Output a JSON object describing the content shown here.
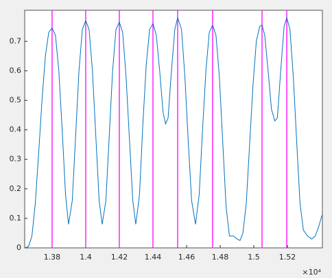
{
  "chart_data": {
    "type": "line",
    "x": [
      13640,
      13660,
      13680,
      13700,
      13720,
      13740,
      13760,
      13780,
      13800,
      13820,
      13840,
      13860,
      13880,
      13898,
      13920,
      13940,
      13960,
      13980,
      14000,
      14020,
      14040,
      14060,
      14080,
      14098,
      14120,
      14140,
      14160,
      14180,
      14200,
      14220,
      14240,
      14260,
      14280,
      14298,
      14320,
      14340,
      14360,
      14380,
      14400,
      14420,
      14440,
      14460,
      14475,
      14490,
      14510,
      14530,
      14547,
      14570,
      14590,
      14610,
      14630,
      14653,
      14675,
      14695,
      14715,
      14735,
      14755,
      14775,
      14795,
      14815,
      14835,
      14855,
      14880,
      14900,
      14918,
      14935,
      14955,
      14975,
      14995,
      15015,
      15035,
      15049,
      15065,
      15085,
      15105,
      15125,
      15140,
      15160,
      15180,
      15196,
      15215,
      15235,
      15255,
      15275,
      15295,
      15320,
      15345,
      15365,
      15385,
      15405
    ],
    "series": [
      {
        "color": "#0072bd",
        "values": [
          0.0,
          0.005,
          0.04,
          0.15,
          0.32,
          0.5,
          0.65,
          0.73,
          0.745,
          0.72,
          0.6,
          0.4,
          0.18,
          0.08,
          0.16,
          0.38,
          0.6,
          0.74,
          0.77,
          0.74,
          0.6,
          0.38,
          0.16,
          0.08,
          0.16,
          0.38,
          0.6,
          0.74,
          0.765,
          0.73,
          0.58,
          0.37,
          0.16,
          0.08,
          0.18,
          0.42,
          0.62,
          0.74,
          0.76,
          0.72,
          0.6,
          0.46,
          0.42,
          0.44,
          0.6,
          0.74,
          0.78,
          0.74,
          0.58,
          0.36,
          0.16,
          0.08,
          0.18,
          0.4,
          0.6,
          0.73,
          0.755,
          0.72,
          0.58,
          0.36,
          0.14,
          0.04,
          0.04,
          0.03,
          0.025,
          0.05,
          0.15,
          0.35,
          0.55,
          0.7,
          0.75,
          0.755,
          0.72,
          0.6,
          0.47,
          0.43,
          0.44,
          0.6,
          0.75,
          0.78,
          0.74,
          0.58,
          0.36,
          0.15,
          0.06,
          0.04,
          0.03,
          0.04,
          0.07,
          0.11
        ]
      }
    ],
    "vlines": {
      "color": "#ff00ff",
      "x": [
        13800,
        14000,
        14200,
        14400,
        14547,
        14755,
        15049,
        15196
      ]
    },
    "xlim": [
      13637,
      15408
    ],
    "ylim": [
      0,
      0.805
    ],
    "xticks": [
      {
        "value": 13800,
        "label": "1.38"
      },
      {
        "value": 14000,
        "label": "1.4"
      },
      {
        "value": 14200,
        "label": "1.42"
      },
      {
        "value": 14400,
        "label": "1.44"
      },
      {
        "value": 14600,
        "label": "1.46"
      },
      {
        "value": 14800,
        "label": "1.48"
      },
      {
        "value": 15000,
        "label": "1.5"
      },
      {
        "value": 15200,
        "label": "1.52"
      }
    ],
    "yticks": [
      0,
      0.1,
      0.2,
      0.3,
      0.4,
      0.5,
      0.6,
      0.7
    ],
    "x_exponent": "×10⁴"
  }
}
